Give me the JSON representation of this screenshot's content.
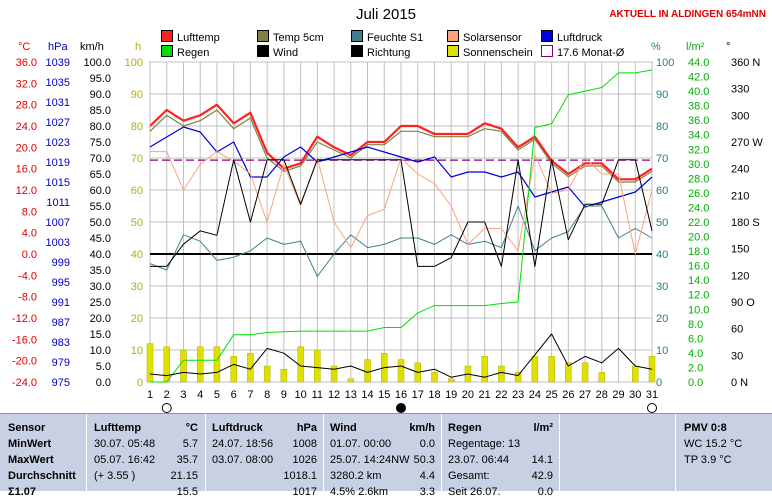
{
  "header": {
    "title": "Juli 2015",
    "station": "AKTUELL IN ALDINGEN 654mNN"
  },
  "legend": [
    {
      "label": "Lufttemp",
      "color": "#ff2020",
      "kind": "box"
    },
    {
      "label": "Temp 5cm",
      "color": "#808040",
      "kind": "box"
    },
    {
      "label": "Feuchte S1",
      "color": "#40808a",
      "kind": "box"
    },
    {
      "label": "Solarsensor",
      "color": "#ffa080",
      "kind": "box"
    },
    {
      "label": "Luftdruck",
      "color": "#0000e0",
      "kind": "box"
    },
    {
      "label": "Regen",
      "color": "#00e000",
      "kind": "box"
    },
    {
      "label": "Wind",
      "color": "#000000",
      "kind": "box"
    },
    {
      "label": "Richtung",
      "color": "#000000",
      "kind": "box"
    },
    {
      "label": "Sonnenschein",
      "color": "#e0e000",
      "kind": "box"
    },
    {
      "label": "17.6 Monat-Ø",
      "color": "#800080",
      "kind": "dash"
    }
  ],
  "axis_headers": {
    "temp": "°C",
    "pressure": "hPa",
    "wind": "km/h",
    "sun": "h",
    "humidity": "%",
    "rain": "l/m²",
    "direction": "°"
  },
  "chart_data": {
    "type": "line",
    "title": "Juli 2015",
    "x": [
      1,
      2,
      3,
      4,
      5,
      6,
      7,
      8,
      9,
      10,
      11,
      12,
      13,
      14,
      15,
      16,
      17,
      18,
      19,
      20,
      21,
      22,
      23,
      24,
      25,
      26,
      27,
      28,
      29,
      30,
      31
    ],
    "axes": {
      "temp": {
        "label": "°C",
        "min": -24,
        "max": 36,
        "ticks": [
          "36.0",
          "32.0",
          "28.0",
          "24.0",
          "20.0",
          "16.0",
          "12.0",
          "8.0",
          "4.0",
          "0.0",
          "-4.0",
          "-8.0",
          "-12.0",
          "-16.0",
          "-20.0",
          "-24.0"
        ]
      },
      "pressure": {
        "label": "hPa",
        "min": 975,
        "max": 1039,
        "ticks": [
          "1039",
          "1035",
          "1031",
          "1027",
          "1023",
          "1019",
          "1015",
          "1011",
          "1007",
          "1003",
          "999",
          "995",
          "991",
          "987",
          "983",
          "979",
          "975"
        ]
      },
      "wind": {
        "label": "km/h",
        "min": 0,
        "max": 100,
        "ticks": [
          "100.0",
          "95.0",
          "90.0",
          "85.0",
          "80.0",
          "75.0",
          "70.0",
          "65.0",
          "60.0",
          "55.0",
          "50.0",
          "45.0",
          "40.0",
          "35.0",
          "30.0",
          "25.0",
          "20.0",
          "15.0",
          "10.0",
          "5.0",
          "0.0"
        ]
      },
      "sun": {
        "label": "h",
        "min": 0,
        "max": 100,
        "ticks": [
          "100",
          "90",
          "80",
          "70",
          "60",
          "50",
          "40",
          "30",
          "20",
          "10",
          "0"
        ]
      },
      "humidity": {
        "label": "%",
        "min": 0,
        "max": 100,
        "ticks": [
          "100",
          "90",
          "80",
          "70",
          "60",
          "50",
          "40",
          "30",
          "20",
          "10",
          "0"
        ]
      },
      "rain": {
        "label": "l/m²",
        "min": 0,
        "max": 44,
        "ticks": [
          "44.0",
          "42.0",
          "40.0",
          "38.0",
          "36.0",
          "34.0",
          "32.0",
          "30.0",
          "28.0",
          "26.0",
          "24.0",
          "22.0",
          "20.0",
          "18.0",
          "16.0",
          "14.0",
          "12.0",
          "10.0",
          "8.0",
          "6.0",
          "4.0",
          "2.0",
          "0.0"
        ]
      },
      "direction": {
        "label": "°",
        "min": 0,
        "max": 360,
        "ticks": [
          "360 N",
          "330",
          "300",
          "270 W",
          "240",
          "210",
          "180 S",
          "150",
          "120",
          "90 O",
          "60",
          "30",
          "0 N"
        ]
      }
    },
    "series": [
      {
        "name": "Lufttemp",
        "axis": "temp",
        "color": "#ff2020",
        "width": 2.2,
        "values": [
          24.0,
          27.0,
          25.0,
          26.0,
          28.0,
          24.5,
          26.5,
          19.0,
          16.0,
          17.0,
          22.0,
          20.0,
          18.5,
          21.0,
          21.0,
          24.0,
          24.0,
          22.5,
          22.5,
          22.5,
          24.5,
          23.5,
          20.0,
          22.0,
          17.5,
          15.0,
          17.0,
          17.0,
          14.0,
          14.0,
          16.0
        ]
      },
      {
        "name": "Temp 5cm",
        "axis": "temp",
        "color": "#808040",
        "width": 1.2,
        "values": [
          23.0,
          26.0,
          24.0,
          25.0,
          27.0,
          23.5,
          25.5,
          18.0,
          15.5,
          16.5,
          21.0,
          19.5,
          18.0,
          20.5,
          20.5,
          23.0,
          23.0,
          22.0,
          22.0,
          22.0,
          23.5,
          23.0,
          19.5,
          21.5,
          17.0,
          14.5,
          16.5,
          16.5,
          13.5,
          13.5,
          15.5
        ]
      },
      {
        "name": "Luftdruck",
        "axis": "pressure",
        "color": "#0000e0",
        "width": 1.2,
        "values": [
          1022,
          1024,
          1026,
          1025,
          1021,
          1023,
          1016,
          1016,
          1020,
          1022,
          1019,
          1020,
          1021,
          1022,
          1021,
          1020,
          1019,
          1020,
          1016,
          1017,
          1017,
          1016,
          1017,
          1012,
          1013,
          1014,
          1010,
          1011,
          1012,
          1013,
          1016
        ]
      },
      {
        "name": "Feuchte S1",
        "axis": "humidity",
        "color": "#40808a",
        "width": 1.0,
        "values": [
          37,
          35,
          46,
          44,
          38,
          39,
          41,
          45,
          43,
          44,
          33,
          40,
          46,
          42,
          43,
          45,
          45,
          43,
          46,
          43,
          44,
          42,
          55,
          41,
          45,
          47,
          55,
          55,
          45,
          48,
          45
        ]
      },
      {
        "name": "Solarsensor",
        "axis": "humidity",
        "color": "#ffa080",
        "width": 1.0,
        "values": [
          72,
          72,
          60,
          68,
          72,
          69,
          65,
          50,
          68,
          55,
          70,
          50,
          42,
          52,
          54,
          70,
          65,
          62,
          55,
          43,
          48,
          48,
          41,
          71,
          59,
          60,
          70,
          65,
          65,
          40,
          60
        ]
      },
      {
        "name": "Regen",
        "axis": "rain",
        "color": "#00e000",
        "width": 1.0,
        "values": [
          0,
          0,
          3.0,
          3.0,
          3.0,
          6.5,
          6.5,
          6.8,
          6.9,
          7.0,
          7.0,
          7.0,
          7.0,
          7.0,
          7.5,
          7.5,
          9.5,
          10.5,
          10.5,
          10.5,
          10.5,
          10.8,
          11.0,
          35.0,
          35.5,
          39.5,
          40.0,
          40.5,
          42.5,
          42.5,
          42.9
        ]
      },
      {
        "name": "Wind",
        "axis": "wind",
        "color": "#000000",
        "width": 1.0,
        "values": [
          2.5,
          2.0,
          3.0,
          2.5,
          3.0,
          5.5,
          4.0,
          10.5,
          9.0,
          5.0,
          4.5,
          4.0,
          5.0,
          3.0,
          4.5,
          5.0,
          3.0,
          4.0,
          1.5,
          2.5,
          1.5,
          3.0,
          2.0,
          8.5,
          15.0,
          5.0,
          8.0,
          6.0,
          10.5,
          5.0,
          4.0
        ]
      },
      {
        "name": "Richtung",
        "axis": "direction",
        "color": "#000000",
        "width": 1.0,
        "values": [
          130,
          130,
          155,
          170,
          165,
          250,
          180,
          250,
          250,
          200,
          250,
          250,
          250,
          250,
          250,
          250,
          130,
          130,
          140,
          180,
          180,
          130,
          250,
          130,
          250,
          160,
          200,
          200,
          250,
          250,
          170
        ]
      }
    ],
    "sunshine": {
      "name": "Sonnenschein",
      "axis": "sun",
      "color": "#e0e000",
      "values": [
        12,
        11,
        10,
        11,
        11,
        8,
        9,
        5,
        4,
        11,
        10,
        5,
        1,
        7,
        9,
        7,
        6,
        3,
        1,
        5,
        8,
        5,
        3,
        8,
        8,
        6,
        6,
        3,
        0,
        5,
        8
      ]
    },
    "reference_lines": [
      {
        "name": "17.6 Monat-Ø",
        "axis": "temp",
        "value": 17.6,
        "color": "#800080"
      },
      {
        "axis": "temp",
        "value": 0,
        "color": "#000000"
      }
    ],
    "grid": true
  },
  "stats": {
    "sensor": {
      "head": "Sensor",
      "rows": [
        "MinWert",
        "MaxWert",
        "Durchschnitt",
        "Σ1.07"
      ]
    },
    "lufttemp": {
      "head": "Lufttemp",
      "unit": "°C",
      "rows": [
        [
          "30.07.  05:48",
          "5.7"
        ],
        [
          "05.07.  16:42",
          "35.7"
        ],
        [
          "(+ 3.55 )",
          "21.15"
        ],
        [
          "",
          "15.5"
        ]
      ]
    },
    "luftdruck": {
      "head": "Luftdruck",
      "unit": "hPa",
      "rows": [
        [
          "24.07.  18:56",
          "1008"
        ],
        [
          "03.07.  08:00",
          "1026"
        ],
        [
          "",
          "1018.1"
        ],
        [
          "",
          "1017"
        ]
      ]
    },
    "wind": {
      "head": "Wind",
      "unit": "km/h",
      "rows": [
        [
          "01.07.  00:00",
          "0.0"
        ],
        [
          "25.07.  14:24NW",
          "50.3"
        ],
        [
          "3280.2 km",
          "4.4"
        ],
        [
          "4.5% 2.6km",
          "3.3"
        ]
      ]
    },
    "regen": {
      "head": "Regen",
      "unit": "l/m²",
      "rows": [
        [
          "Regentage: 13",
          ""
        ],
        [
          "23.07.  06:44",
          "14.1"
        ],
        [
          "Gesamt:",
          "42.9"
        ],
        [
          "Seit 26.07.",
          "0.0"
        ]
      ]
    },
    "pmv": {
      "head": "PMV 0:8",
      "rows": [
        "WC 15.2 °C",
        "TP 3.9 °C"
      ]
    }
  }
}
